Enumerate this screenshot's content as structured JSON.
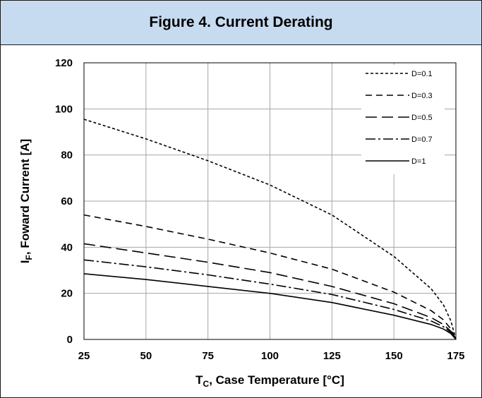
{
  "figure": {
    "title": "Figure 4. Current Derating"
  },
  "chart_data": {
    "type": "line",
    "title": "Figure 4. Current Derating",
    "xlabel": {
      "main": "T",
      "sub": "C",
      "rest": ", Case Temperature [°C]"
    },
    "ylabel": {
      "main": "I",
      "sub": "F",
      "rest": ", Foward Current [A]"
    },
    "xlim": [
      25,
      175
    ],
    "ylim": [
      0,
      120
    ],
    "xticks": [
      25,
      50,
      75,
      100,
      125,
      150,
      175
    ],
    "yticks": [
      0,
      20,
      40,
      60,
      80,
      100,
      120
    ],
    "grid": true,
    "legend_position": "top-right",
    "series": [
      {
        "name": "D=0.1",
        "dash": "4,3",
        "x": [
          25,
          50,
          75,
          100,
          125,
          150,
          165,
          170,
          173,
          175
        ],
        "y": [
          95.5,
          87,
          77.5,
          67,
          54,
          36,
          22,
          15,
          8,
          0
        ]
      },
      {
        "name": "D=0.3",
        "dash": "9,6",
        "x": [
          25,
          50,
          75,
          100,
          125,
          150,
          165,
          170,
          173,
          175
        ],
        "y": [
          54,
          49,
          43.5,
          37.5,
          30.5,
          20.5,
          12.5,
          8.5,
          4.5,
          0
        ]
      },
      {
        "name": "D=0.5",
        "dash": "16,7",
        "x": [
          25,
          50,
          75,
          100,
          125,
          150,
          165,
          170,
          173,
          175
        ],
        "y": [
          41.5,
          37.5,
          33.5,
          29,
          23,
          15.5,
          9.5,
          6.5,
          3.5,
          0
        ]
      },
      {
        "name": "D=0.7",
        "dash": "14,4,3,4",
        "x": [
          25,
          50,
          75,
          100,
          125,
          150,
          165,
          170,
          173,
          175
        ],
        "y": [
          34.5,
          31.5,
          28,
          24,
          19.5,
          13,
          8,
          5.5,
          3,
          0
        ]
      },
      {
        "name": "D=1",
        "dash": "",
        "x": [
          25,
          50,
          75,
          100,
          125,
          150,
          165,
          170,
          173,
          175
        ],
        "y": [
          28.5,
          26,
          23,
          20,
          16,
          10.5,
          6.5,
          4.5,
          2.5,
          0
        ]
      }
    ]
  }
}
